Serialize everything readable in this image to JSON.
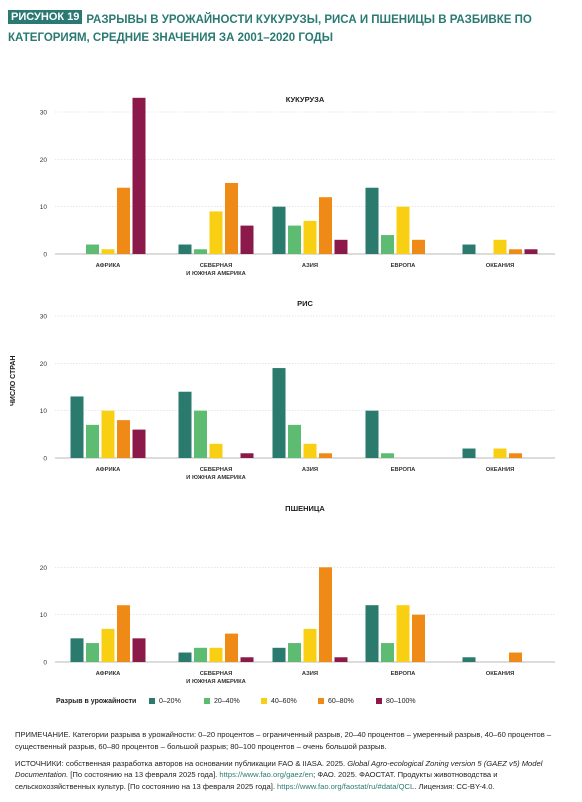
{
  "figure": {
    "label": "РИСУНОК 19",
    "title": "РАЗРЫВЫ В УРОЖАЙНОСТИ КУКУРУЗЫ, РИСА И ПШЕНИЦЫ В РАЗБИВКЕ ПО КАТЕГОРИЯМ, СРЕДНИЕ ЗНАЧЕНИЯ ЗА 2001–2020 ГОДЫ"
  },
  "y_axis_label": "ЧИСЛО СТРАН",
  "legend": {
    "title": "Разрыв в урожайности",
    "items": [
      {
        "label": "0–20%",
        "color": "#2a7a6d"
      },
      {
        "label": "20–40%",
        "color": "#5dbb72"
      },
      {
        "label": "40–60%",
        "color": "#f8cf13"
      },
      {
        "label": "60–80%",
        "color": "#ef8a17"
      },
      {
        "label": "80–100%",
        "color": "#8b1a4a"
      }
    ]
  },
  "chart_data": [
    {
      "type": "bar",
      "title": "КУКУРУЗА",
      "categories": [
        "АФРИКА",
        "СЕВЕРНАЯ\nИ ЮЖНАЯ АМЕРИКА",
        "АЗИЯ",
        "ЕВРОПА",
        "ОКЕАНИЯ"
      ],
      "series": [
        {
          "name": "0–20%",
          "values": [
            0,
            2,
            10,
            14,
            2
          ]
        },
        {
          "name": "20–40%",
          "values": [
            2,
            1,
            6,
            4,
            0
          ]
        },
        {
          "name": "40–60%",
          "values": [
            1,
            9,
            7,
            10,
            3
          ]
        },
        {
          "name": "60–80%",
          "values": [
            14,
            15,
            12,
            3,
            1
          ]
        },
        {
          "name": "80–100%",
          "values": [
            33,
            6,
            3,
            0,
            1
          ]
        }
      ],
      "yticks": [
        0,
        10,
        20,
        30
      ],
      "ylim": [
        0,
        30
      ],
      "grid": true
    },
    {
      "type": "bar",
      "title": "РИС",
      "categories": [
        "АФРИКА",
        "СЕВЕРНАЯ\nИ ЮЖНАЯ АМЕРИКА",
        "АЗИЯ",
        "ЕВРОПА",
        "ОКЕАНИЯ"
      ],
      "series": [
        {
          "name": "0–20%",
          "values": [
            13,
            14,
            19,
            10,
            2
          ]
        },
        {
          "name": "20–40%",
          "values": [
            7,
            10,
            7,
            1,
            0
          ]
        },
        {
          "name": "40–60%",
          "values": [
            10,
            3,
            3,
            0,
            2
          ]
        },
        {
          "name": "60–80%",
          "values": [
            8,
            0,
            1,
            0,
            1
          ]
        },
        {
          "name": "80–100%",
          "values": [
            6,
            1,
            0,
            0,
            0
          ]
        }
      ],
      "yticks": [
        0,
        10,
        20,
        30
      ],
      "ylim": [
        0,
        30
      ],
      "grid": true
    },
    {
      "type": "bar",
      "title": "ПШЕНИЦА",
      "categories": [
        "АФРИКА",
        "СЕВЕРНАЯ\nИ ЮЖНАЯ АМЕРИКА",
        "АЗИЯ",
        "ЕВРОПА",
        "ОКЕАНИЯ"
      ],
      "series": [
        {
          "name": "0–20%",
          "values": [
            5,
            2,
            3,
            12,
            1
          ]
        },
        {
          "name": "20–40%",
          "values": [
            4,
            3,
            4,
            4,
            0
          ]
        },
        {
          "name": "40–60%",
          "values": [
            7,
            3,
            7,
            12,
            0
          ]
        },
        {
          "name": "60–80%",
          "values": [
            12,
            6,
            20,
            10,
            2
          ]
        },
        {
          "name": "80–100%",
          "values": [
            5,
            1,
            1,
            0,
            0
          ]
        }
      ],
      "yticks": [
        0,
        10,
        20
      ],
      "ylim": [
        0,
        30
      ],
      "grid": true
    }
  ],
  "notes": {
    "note": "ПРИМЕЧАНИЕ. Категории разрыва в урожайности: 0–20 процентов – ограниченный разрыв, 20–40 процентов – умеренный разрыв, 40–60 процентов – существенный разрыв, 60–80 процентов – большой разрыв; 80–100 процентов – очень большой разрыв.",
    "sources_a": "ИСТОЧНИКИ: собственная разработка авторов на основании публикации FAO & IIASA. 2025. ",
    "sources_italic": "Global Agro-ecological Zoning version 5 (GAEZ v5) Model Documentation.",
    "sources_b": " [По состоянию на 13 февраля 2025 года]. ",
    "link1": "https://www.fao.org/gaez/en",
    "sources_c": "; ФАО. 2025. ФАОСТАТ. Продукты животноводства и сельскохозяйственных культур. [По состоянию на 13 февраля 2025 года]. ",
    "link2": "https://www.fao.org/faostat/ru/#data/QCL",
    "sources_d": ". Лицензия: CC-BY-4.0."
  }
}
